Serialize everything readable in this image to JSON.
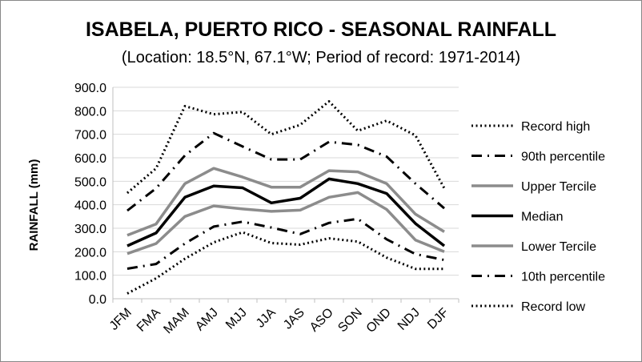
{
  "chart_data": {
    "type": "line",
    "title": "ISABELA, PUERTO RICO - SEASONAL RAINFALL",
    "subtitle": "(Location: 18.5°N, 67.1°W; Period of record: 1971-2014)",
    "xlabel": "",
    "ylabel": "RAINFALL (mm)",
    "ylim": [
      0,
      900
    ],
    "ytick_step": 100,
    "ytick_format": "0.0",
    "grid": true,
    "legend_position": "right",
    "categories": [
      "JFM",
      "FMA",
      "MAM",
      "AMJ",
      "MJJ",
      "JJA",
      "JAS",
      "ASO",
      "SON",
      "OND",
      "NDJ",
      "DJF"
    ],
    "series": [
      {
        "name": "Record high",
        "style": "dotted",
        "color": "#000000",
        "values": [
          450,
          555,
          820,
          785,
          795,
          700,
          740,
          840,
          715,
          758,
          695,
          470
        ]
      },
      {
        "name": "90th percentile",
        "style": "dashdot",
        "color": "#000000",
        "values": [
          375,
          470,
          610,
          705,
          648,
          593,
          593,
          668,
          655,
          605,
          490,
          385
        ]
      },
      {
        "name": "Upper Tercile",
        "style": "solid",
        "color": "#8c8c8c",
        "values": [
          270,
          318,
          490,
          555,
          518,
          475,
          475,
          545,
          540,
          490,
          360,
          285
        ]
      },
      {
        "name": "Median",
        "style": "solid",
        "color": "#000000",
        "values": [
          225,
          280,
          432,
          480,
          472,
          408,
          428,
          510,
          490,
          448,
          320,
          225
        ]
      },
      {
        "name": "Lower Tercile",
        "style": "solid",
        "color": "#8c8c8c",
        "values": [
          192,
          235,
          350,
          395,
          382,
          372,
          377,
          432,
          452,
          380,
          250,
          200
        ]
      },
      {
        "name": "10th percentile",
        "style": "dashdot",
        "color": "#000000",
        "values": [
          128,
          148,
          235,
          307,
          328,
          303,
          275,
          323,
          340,
          253,
          190,
          165
        ]
      },
      {
        "name": "Record low",
        "style": "dotted",
        "color": "#000000",
        "values": [
          22,
          87,
          170,
          240,
          283,
          237,
          230,
          257,
          243,
          175,
          127,
          127
        ]
      }
    ]
  }
}
